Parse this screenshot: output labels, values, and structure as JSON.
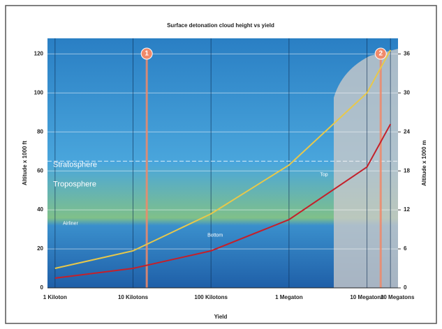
{
  "chart_data": {
    "type": "line",
    "title": "Surface detonation cloud height vs yield",
    "x_label": "Yield",
    "y_label": "Altitude x 1000 ft",
    "y2_label": "Altitude x 1000 m",
    "log_x": true,
    "xlim": [
      0.8,
      25000
    ],
    "xticks": [
      {
        "value": 1,
        "label": "1 Kiloton"
      },
      {
        "value": 10,
        "label": "10 Kilotons"
      },
      {
        "value": 100,
        "label": "100 Kilotons"
      },
      {
        "value": 1000,
        "label": "1 Megaton"
      },
      {
        "value": 10000,
        "label": "10 Megatons"
      },
      {
        "value": 20000,
        "label": "20 Megatons"
      }
    ],
    "ylim": [
      0,
      128
    ],
    "yticks": [
      0,
      20,
      40,
      60,
      80,
      100,
      120
    ],
    "y2lim": [
      0,
      38.4
    ],
    "y2ticks": [
      0,
      6,
      12,
      18,
      24,
      30,
      36
    ],
    "grid": true,
    "x": [
      1,
      10,
      100,
      1000,
      10000,
      20000
    ],
    "series": [
      {
        "name": "Top",
        "color": "#e8c84a",
        "values": [
          10,
          19,
          38,
          63,
          100,
          122
        ]
      },
      {
        "name": "Bottom",
        "color": "#c4202a",
        "values": [
          5,
          10,
          19,
          35,
          62,
          84
        ]
      }
    ],
    "markers": [
      {
        "label": "1",
        "x": 15,
        "color": "#f08a6a"
      },
      {
        "label": "2",
        "x": 15000,
        "color": "#f08a6a"
      }
    ],
    "layers": [
      {
        "label": "Stratosphere",
        "y": 63
      },
      {
        "label": "Troposphere",
        "y": 53
      },
      {
        "label": "Airliner",
        "y": 33
      }
    ]
  }
}
